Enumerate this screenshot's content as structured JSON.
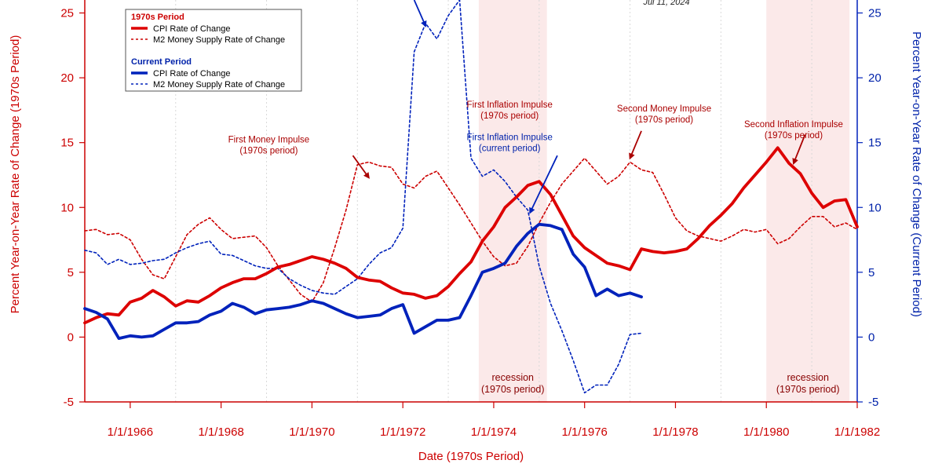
{
  "chart_data": {
    "type": "line",
    "date_label": "Jul 11, 2024",
    "xlabel": "Date (1970s Period)",
    "ylabel_left": "Percent Year-on-Year Rate of Change (1970s Period)",
    "ylabel_right": "Percent Year-on-Year Rate of Change (Current Period)",
    "xlim": [
      1965.0,
      1982.0
    ],
    "ylim_left": [
      -5,
      26
    ],
    "ylim_right": [
      -5,
      26
    ],
    "x_ticks": [
      1966,
      1968,
      1970,
      1972,
      1974,
      1976,
      1978,
      1980,
      1982
    ],
    "x_tick_labels": [
      "1/1/1966",
      "1/1/1968",
      "1/1/1970",
      "1/1/1972",
      "1/1/1974",
      "1/1/1976",
      "1/1/1978",
      "1/1/1980",
      "1/1/1982"
    ],
    "y_ticks": [
      -5,
      0,
      5,
      10,
      15,
      20,
      25
    ],
    "y_tick_labels": [
      "-5",
      "0",
      "5",
      "10",
      "15",
      "20",
      "25"
    ],
    "grid": "vertical dotted",
    "colors": {
      "red": "#dd0000",
      "blue": "#0022bb",
      "recession": "#fbe9e9"
    },
    "legend": {
      "placement": "top-left",
      "groups": [
        {
          "heading": "1970s Period",
          "items": [
            "CPI Rate of Change",
            "M2 Money Supply Rate of Change"
          ]
        },
        {
          "heading": "Current Period",
          "items": [
            "CPI Rate of Change",
            "M2 Money Supply Rate of Change"
          ]
        }
      ]
    },
    "recessions": [
      {
        "start": 1973.67,
        "end": 1975.17,
        "label": [
          "recession",
          "(1970s period)"
        ]
      },
      {
        "start": 1980.0,
        "end": 1981.83,
        "label": [
          "recession",
          "(1970s period)"
        ]
      }
    ],
    "annotations": [
      {
        "lines": [
          "First Money Impulse",
          "(1970s period)"
        ],
        "text_x": 1969.05,
        "text_y": 15.0,
        "arrow_from": [
          1970.9,
          14.0
        ],
        "arrow_to": [
          1971.25,
          12.3
        ],
        "color": "red"
      },
      {
        "lines": [
          "First Inflation Impulse",
          "(1970s period)"
        ],
        "text_x": 1974.35,
        "text_y": 17.7,
        "arrow_from": [
          1974.8,
          17.3
        ],
        "arrow_to": [
          1974.8,
          17.3
        ],
        "color": "red"
      },
      {
        "lines": [
          "First Inflation Impulse",
          "(current period)"
        ],
        "text_x": 1974.35,
        "text_y": 15.2,
        "arrow_from": [
          1975.4,
          14.0
        ],
        "arrow_to": [
          1974.8,
          9.6
        ],
        "color": "blue"
      },
      {
        "lines": [
          "Second Money Impulse",
          "(1970s period)"
        ],
        "text_x": 1977.75,
        "text_y": 17.4,
        "arrow_from": [
          1977.25,
          15.9
        ],
        "arrow_to": [
          1977.0,
          13.8
        ],
        "color": "red"
      },
      {
        "lines": [
          "Second Inflation Impulse",
          "(1970s period)"
        ],
        "text_x": 1980.6,
        "text_y": 16.2,
        "arrow_from": [
          1980.85,
          15.6
        ],
        "arrow_to": [
          1980.6,
          13.4
        ],
        "color": "red"
      },
      {
        "lines": [],
        "arrow_from": [
          1972.25,
          26.0
        ],
        "arrow_to": [
          1972.5,
          24.0
        ],
        "color": "blue"
      }
    ],
    "series": [
      {
        "name": "CPI Rate of Change",
        "group": "1970s Period",
        "color": "#dd0000",
        "dash": "solid",
        "x": [
          1965.0,
          1965.25,
          1965.5,
          1965.75,
          1966.0,
          1966.25,
          1966.5,
          1966.75,
          1967.0,
          1967.25,
          1967.5,
          1967.75,
          1968.0,
          1968.25,
          1968.5,
          1968.75,
          1969.0,
          1969.25,
          1969.5,
          1969.75,
          1970.0,
          1970.25,
          1970.5,
          1970.75,
          1971.0,
          1971.25,
          1971.5,
          1971.75,
          1972.0,
          1972.25,
          1972.5,
          1972.75,
          1973.0,
          1973.25,
          1973.5,
          1973.75,
          1974.0,
          1974.25,
          1974.5,
          1974.75,
          1975.0,
          1975.25,
          1975.5,
          1975.75,
          1976.0,
          1976.25,
          1976.5,
          1976.75,
          1977.0,
          1977.25,
          1977.5,
          1977.75,
          1978.0,
          1978.25,
          1978.5,
          1978.75,
          1979.0,
          1979.25,
          1979.5,
          1979.75,
          1980.0,
          1980.25,
          1980.5,
          1980.75,
          1981.0,
          1981.25,
          1981.5,
          1981.75,
          1982.0
        ],
        "values": [
          1.1,
          1.5,
          1.8,
          1.7,
          2.7,
          3.0,
          3.6,
          3.1,
          2.4,
          2.8,
          2.7,
          3.2,
          3.8,
          4.2,
          4.5,
          4.5,
          4.9,
          5.4,
          5.6,
          5.9,
          6.2,
          6.0,
          5.7,
          5.3,
          4.6,
          4.4,
          4.3,
          3.8,
          3.4,
          3.3,
          3.0,
          3.2,
          3.9,
          4.9,
          5.8,
          7.4,
          8.5,
          10.0,
          10.8,
          11.7,
          12.0,
          11.0,
          9.4,
          7.8,
          6.9,
          6.3,
          5.7,
          5.5,
          5.2,
          6.8,
          6.6,
          6.5,
          6.6,
          6.8,
          7.6,
          8.6,
          9.4,
          10.3,
          11.5,
          12.5,
          13.5,
          14.6,
          13.4,
          12.6,
          11.1,
          10.0,
          10.5,
          10.6,
          8.5
        ]
      },
      {
        "name": "M2 Money Supply Rate of Change",
        "group": "1970s Period",
        "color": "#cc0000",
        "dash": "dashed",
        "x": [
          1965.0,
          1965.25,
          1965.5,
          1965.75,
          1966.0,
          1966.25,
          1966.5,
          1966.75,
          1967.0,
          1967.25,
          1967.5,
          1967.75,
          1968.0,
          1968.25,
          1968.5,
          1968.75,
          1969.0,
          1969.25,
          1969.5,
          1969.75,
          1970.0,
          1970.25,
          1970.5,
          1970.75,
          1971.0,
          1971.25,
          1971.5,
          1971.75,
          1972.0,
          1972.25,
          1972.5,
          1972.75,
          1973.0,
          1973.25,
          1973.5,
          1973.75,
          1974.0,
          1974.25,
          1974.5,
          1974.75,
          1975.0,
          1975.25,
          1975.5,
          1975.75,
          1976.0,
          1976.25,
          1976.5,
          1976.75,
          1977.0,
          1977.25,
          1977.5,
          1977.75,
          1978.0,
          1978.25,
          1978.5,
          1978.75,
          1979.0,
          1979.25,
          1979.5,
          1979.75,
          1980.0,
          1980.25,
          1980.5,
          1980.75,
          1981.0,
          1981.25,
          1981.5,
          1981.75,
          1982.0
        ],
        "values": [
          8.2,
          8.3,
          7.9,
          8.0,
          7.5,
          6.0,
          4.8,
          4.5,
          6.2,
          7.9,
          8.7,
          9.2,
          8.3,
          7.6,
          7.7,
          7.8,
          6.9,
          5.5,
          4.4,
          3.3,
          2.7,
          4.2,
          6.9,
          9.8,
          13.3,
          13.5,
          13.2,
          13.1,
          11.8,
          11.5,
          12.4,
          12.8,
          11.5,
          10.2,
          8.8,
          7.4,
          6.2,
          5.5,
          5.7,
          7.0,
          8.8,
          10.4,
          11.8,
          12.8,
          13.8,
          12.8,
          11.8,
          12.4,
          13.5,
          12.9,
          12.7,
          11.0,
          9.2,
          8.2,
          7.8,
          7.6,
          7.4,
          7.8,
          8.3,
          8.1,
          8.3,
          7.2,
          7.6,
          8.5,
          9.3,
          9.3,
          8.5,
          8.8,
          8.3
        ]
      },
      {
        "name": "CPI Rate of Change",
        "group": "Current Period",
        "color": "#0022bb",
        "dash": "solid",
        "x": [
          1965.0,
          1965.25,
          1965.5,
          1965.75,
          1966.0,
          1966.25,
          1966.5,
          1966.75,
          1967.0,
          1967.25,
          1967.5,
          1967.75,
          1968.0,
          1968.25,
          1968.5,
          1968.75,
          1969.0,
          1969.25,
          1969.5,
          1969.75,
          1970.0,
          1970.25,
          1970.5,
          1970.75,
          1971.0,
          1971.25,
          1971.5,
          1971.75,
          1972.0,
          1972.25,
          1972.5,
          1972.75,
          1973.0,
          1973.25,
          1973.5,
          1973.75,
          1974.0,
          1974.25,
          1974.5,
          1974.75,
          1975.0,
          1975.25,
          1975.5,
          1975.75,
          1976.0,
          1976.25,
          1976.5,
          1976.75,
          1977.0,
          1977.25
        ],
        "values": [
          2.2,
          1.9,
          1.4,
          -0.1,
          0.1,
          0.0,
          0.1,
          0.6,
          1.1,
          1.1,
          1.2,
          1.7,
          2.0,
          2.6,
          2.3,
          1.8,
          2.1,
          2.2,
          2.3,
          2.5,
          2.8,
          2.6,
          2.2,
          1.8,
          1.5,
          1.6,
          1.7,
          2.2,
          2.5,
          0.3,
          0.8,
          1.3,
          1.3,
          1.5,
          3.2,
          5.0,
          5.3,
          5.7,
          7.0,
          8.0,
          8.7,
          8.6,
          8.3,
          6.4,
          5.4,
          3.2,
          3.7,
          3.2,
          3.4,
          3.1
        ]
      },
      {
        "name": "M2 Money Supply Rate of Change",
        "group": "Current Period",
        "color": "#0022bb",
        "dash": "dashed",
        "x": [
          1965.0,
          1965.25,
          1965.5,
          1965.75,
          1966.0,
          1966.25,
          1966.5,
          1966.75,
          1967.0,
          1967.25,
          1967.5,
          1967.75,
          1968.0,
          1968.25,
          1968.5,
          1968.75,
          1969.0,
          1969.25,
          1969.5,
          1969.75,
          1970.0,
          1970.25,
          1970.5,
          1970.75,
          1971.0,
          1971.25,
          1971.5,
          1971.75,
          1972.0,
          1972.25,
          1972.5,
          1972.75,
          1973.0,
          1973.25,
          1973.5,
          1973.75,
          1974.0,
          1974.25,
          1974.5,
          1974.75,
          1975.0,
          1975.25,
          1975.5,
          1975.75,
          1976.0,
          1976.25,
          1976.5,
          1976.75,
          1977.0,
          1977.25
        ],
        "values": [
          6.7,
          6.5,
          5.6,
          6.0,
          5.6,
          5.7,
          5.9,
          6.0,
          6.5,
          6.9,
          7.2,
          7.4,
          6.4,
          6.3,
          5.9,
          5.5,
          5.3,
          5.3,
          4.5,
          4.0,
          3.6,
          3.4,
          3.3,
          3.9,
          4.5,
          5.6,
          6.5,
          6.9,
          8.4,
          22.0,
          24.2,
          23.0,
          24.8,
          26.0,
          13.8,
          12.4,
          12.9,
          12.0,
          10.8,
          9.8,
          5.5,
          2.6,
          0.5,
          -1.8,
          -4.3,
          -3.7,
          -3.7,
          -2.1,
          0.2,
          0.3
        ]
      }
    ]
  }
}
